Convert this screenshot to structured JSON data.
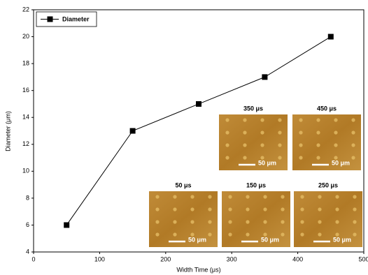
{
  "chart_data": {
    "type": "line",
    "x_label": "Width Time (μs)",
    "y_label": "Diameter (μm)",
    "x": [
      50,
      150,
      250,
      350,
      450
    ],
    "series": [
      {
        "name": "Diameter",
        "color": "#000000",
        "values": [
          6,
          13,
          15,
          17,
          20
        ]
      }
    ],
    "xlim": [
      0,
      500
    ],
    "xticks": [
      0,
      100,
      200,
      300,
      400,
      500
    ],
    "ylim": [
      4,
      22
    ],
    "yticks": [
      4,
      6,
      8,
      10,
      12,
      14,
      16,
      18,
      20,
      22
    ],
    "legend": "top-left",
    "grid": false
  },
  "insets": [
    {
      "label": "350 μs",
      "scale": "50 μm"
    },
    {
      "label": "450 μs",
      "scale": "50 μm"
    },
    {
      "label": "50 μs",
      "scale": "50 μm"
    },
    {
      "label": "150 μs",
      "scale": "50 μm"
    },
    {
      "label": "250 μs",
      "scale": "50 μm"
    }
  ]
}
